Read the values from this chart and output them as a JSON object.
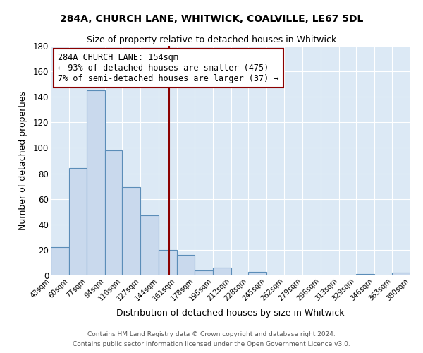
{
  "title1": "284A, CHURCH LANE, WHITWICK, COALVILLE, LE67 5DL",
  "title2": "Size of property relative to detached houses in Whitwick",
  "xlabel": "Distribution of detached houses by size in Whitwick",
  "ylabel": "Number of detached properties",
  "bar_edges": [
    43,
    60,
    77,
    94,
    110,
    127,
    144,
    161,
    178,
    195,
    212,
    228,
    245,
    262,
    279,
    296,
    313,
    329,
    346,
    363,
    380
  ],
  "bar_heights": [
    22,
    84,
    145,
    98,
    69,
    47,
    20,
    16,
    4,
    6,
    0,
    3,
    0,
    0,
    0,
    0,
    0,
    1,
    0,
    2
  ],
  "bar_color": "#c9d9ed",
  "bar_edgecolor": "#5b8db8",
  "bg_color": "#dce9f5",
  "fig_bg_color": "#ffffff",
  "grid_color": "#ffffff",
  "ylim": [
    0,
    180
  ],
  "yticks": [
    0,
    20,
    40,
    60,
    80,
    100,
    120,
    140,
    160,
    180
  ],
  "property_size": 154,
  "annotation_title": "284A CHURCH LANE: 154sqm",
  "annotation_line1": "← 93% of detached houses are smaller (475)",
  "annotation_line2": "7% of semi-detached houses are larger (37) →",
  "annotation_box_color": "#ffffff",
  "annotation_box_edgecolor": "#8b0000",
  "vline_color": "#8b0000",
  "footer1": "Contains HM Land Registry data © Crown copyright and database right 2024.",
  "footer2": "Contains public sector information licensed under the Open Government Licence v3.0."
}
